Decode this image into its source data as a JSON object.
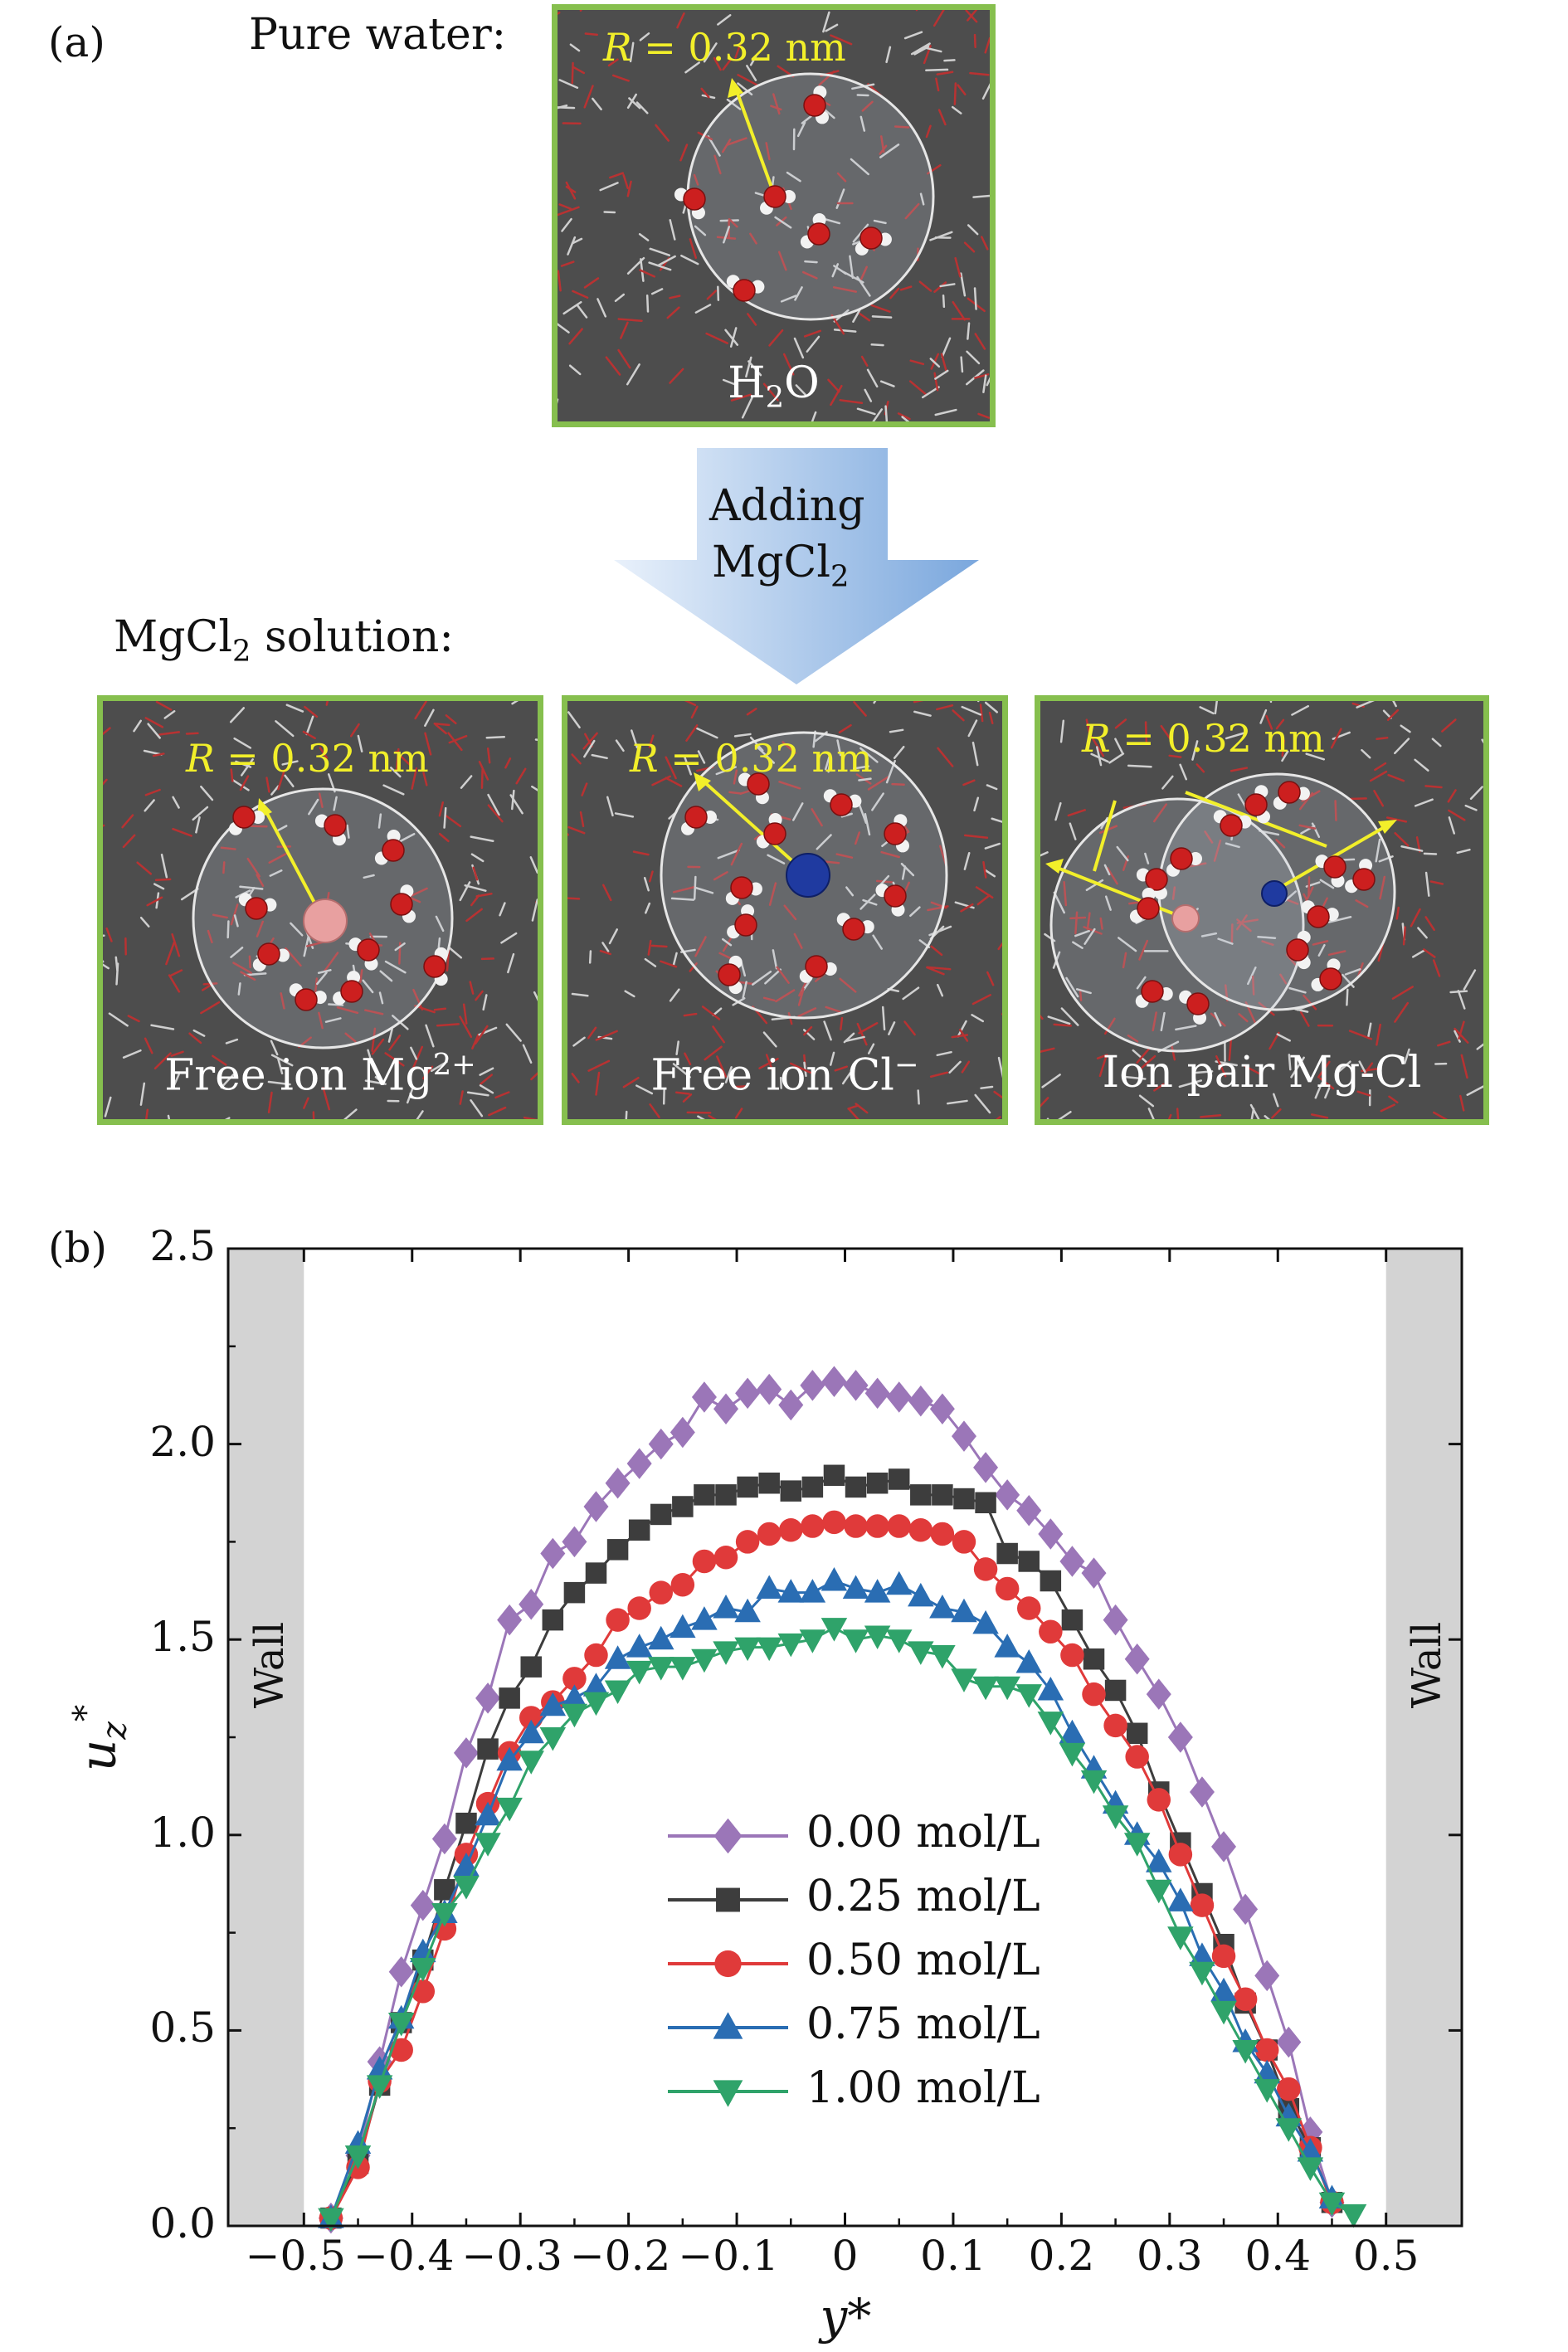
{
  "panel_a": {
    "label": "(a)",
    "pure_water_label": "Pure water:",
    "solution_label_pre": "MgCl",
    "solution_label_sub": "2",
    "solution_label_post": " solution:",
    "arrow_text_line1": "Adding",
    "arrow_text_line2_pre": "MgCl",
    "arrow_text_line2_sub": "2",
    "radius_var": "R",
    "radius_eq": " = 0.32 nm",
    "images": [
      {
        "caption_pre": "H",
        "caption_sub": "2",
        "caption_post": "O",
        "caption_sup": ""
      },
      {
        "caption_pre": "Free ion Mg",
        "caption_sub": "",
        "caption_post": "",
        "caption_sup": "2+"
      },
      {
        "caption_pre": "Free ion Cl",
        "caption_sub": "",
        "caption_post": "",
        "caption_sup": "−"
      },
      {
        "caption_pre": "Ion pair Mg-Cl",
        "caption_sub": "",
        "caption_post": "",
        "caption_sup": ""
      }
    ],
    "colors": {
      "frame": "#86bf4e",
      "background": "#4d4d4d",
      "oxygen": "#cc1f1f",
      "hydrogen": "#f2f2f2",
      "mg_ion": "#e8a0a0",
      "cl_ion": "#1f3aa0",
      "radius": "#f2ef2a"
    }
  },
  "panel_b": {
    "label": "(b)",
    "wall_label": "Wall",
    "chart_data": {
      "type": "line",
      "xlabel": "y*",
      "ylabel": "u",
      "ylabel_sub": "z",
      "ylabel_sup": "*",
      "xlim": [
        -0.57,
        0.57
      ],
      "ylim": [
        0,
        2.5
      ],
      "xticks": [
        -0.5,
        -0.4,
        -0.3,
        -0.2,
        -0.1,
        0,
        0.1,
        0.2,
        0.3,
        0.4,
        0.5
      ],
      "xtick_labels": [
        "−0.5",
        "−0.4",
        "−0.3",
        "−0.2",
        "−0.1",
        "0",
        "0.1",
        "0.2",
        "0.3",
        "0.4",
        "0.5"
      ],
      "yticks": [
        0,
        0.5,
        1.0,
        1.5,
        2.0,
        2.5
      ],
      "ytick_labels": [
        "0.0",
        "0.5",
        "1.0",
        "1.5",
        "2.0",
        "2.5"
      ],
      "wall_regions": [
        [
          -0.57,
          -0.5
        ],
        [
          0.5,
          0.57
        ]
      ],
      "grid": false,
      "legend_position": "center",
      "series": [
        {
          "name": "0.00 mol/L",
          "color": "#9b76b8",
          "marker": "diamond",
          "x": [
            -0.475,
            -0.45,
            -0.43,
            -0.41,
            -0.39,
            -0.37,
            -0.35,
            -0.33,
            -0.31,
            -0.29,
            -0.27,
            -0.25,
            -0.23,
            -0.21,
            -0.19,
            -0.17,
            -0.15,
            -0.13,
            -0.11,
            -0.09,
            -0.07,
            -0.05,
            -0.03,
            -0.01,
            0.01,
            0.03,
            0.05,
            0.07,
            0.09,
            0.11,
            0.13,
            0.15,
            0.17,
            0.19,
            0.21,
            0.23,
            0.25,
            0.27,
            0.29,
            0.31,
            0.33,
            0.35,
            0.37,
            0.39,
            0.41,
            0.43,
            0.45
          ],
          "y": [
            0.02,
            0.18,
            0.42,
            0.65,
            0.82,
            0.99,
            1.21,
            1.35,
            1.55,
            1.59,
            1.72,
            1.75,
            1.84,
            1.9,
            1.95,
            2.0,
            2.03,
            2.12,
            2.09,
            2.13,
            2.14,
            2.1,
            2.15,
            2.16,
            2.15,
            2.13,
            2.12,
            2.11,
            2.09,
            2.02,
            1.94,
            1.87,
            1.83,
            1.77,
            1.7,
            1.67,
            1.55,
            1.45,
            1.36,
            1.25,
            1.11,
            0.97,
            0.81,
            0.64,
            0.47,
            0.24,
            0.06
          ]
        },
        {
          "name": "0.25 mol/L",
          "color": "#3d3d3d",
          "marker": "square",
          "x": [
            -0.475,
            -0.45,
            -0.43,
            -0.41,
            -0.39,
            -0.37,
            -0.35,
            -0.33,
            -0.31,
            -0.29,
            -0.27,
            -0.25,
            -0.23,
            -0.21,
            -0.19,
            -0.17,
            -0.15,
            -0.13,
            -0.11,
            -0.09,
            -0.07,
            -0.05,
            -0.03,
            -0.01,
            0.01,
            0.03,
            0.05,
            0.07,
            0.09,
            0.11,
            0.13,
            0.15,
            0.17,
            0.19,
            0.21,
            0.23,
            0.25,
            0.27,
            0.29,
            0.31,
            0.33,
            0.35,
            0.37,
            0.39,
            0.41,
            0.43,
            0.45
          ],
          "y": [
            0.02,
            0.16,
            0.36,
            0.52,
            0.68,
            0.86,
            1.03,
            1.22,
            1.35,
            1.43,
            1.55,
            1.62,
            1.67,
            1.73,
            1.78,
            1.82,
            1.84,
            1.87,
            1.87,
            1.89,
            1.9,
            1.88,
            1.89,
            1.92,
            1.89,
            1.9,
            1.91,
            1.87,
            1.87,
            1.86,
            1.85,
            1.72,
            1.7,
            1.65,
            1.55,
            1.45,
            1.37,
            1.26,
            1.11,
            0.98,
            0.85,
            0.72,
            0.57,
            0.45,
            0.3,
            0.2,
            0.06
          ]
        },
        {
          "name": "0.50 mol/L",
          "color": "#e03a3a",
          "marker": "circle",
          "x": [
            -0.475,
            -0.45,
            -0.43,
            -0.41,
            -0.39,
            -0.37,
            -0.35,
            -0.33,
            -0.31,
            -0.29,
            -0.27,
            -0.25,
            -0.23,
            -0.21,
            -0.19,
            -0.17,
            -0.15,
            -0.13,
            -0.11,
            -0.09,
            -0.07,
            -0.05,
            -0.03,
            -0.01,
            0.01,
            0.03,
            0.05,
            0.07,
            0.09,
            0.11,
            0.13,
            0.15,
            0.17,
            0.19,
            0.21,
            0.23,
            0.25,
            0.27,
            0.29,
            0.31,
            0.33,
            0.35,
            0.37,
            0.39,
            0.41,
            0.43,
            0.45
          ],
          "y": [
            0.02,
            0.15,
            0.37,
            0.45,
            0.6,
            0.76,
            0.95,
            1.08,
            1.21,
            1.3,
            1.34,
            1.4,
            1.46,
            1.55,
            1.58,
            1.62,
            1.64,
            1.7,
            1.71,
            1.75,
            1.77,
            1.78,
            1.79,
            1.8,
            1.79,
            1.79,
            1.79,
            1.78,
            1.77,
            1.75,
            1.68,
            1.63,
            1.58,
            1.52,
            1.46,
            1.36,
            1.28,
            1.2,
            1.09,
            0.95,
            0.82,
            0.69,
            0.58,
            0.45,
            0.35,
            0.2,
            0.06
          ]
        },
        {
          "name": "0.75 mol/L",
          "color": "#2a6db3",
          "marker": "triangle-up",
          "x": [
            -0.475,
            -0.45,
            -0.43,
            -0.41,
            -0.39,
            -0.37,
            -0.35,
            -0.33,
            -0.31,
            -0.29,
            -0.27,
            -0.25,
            -0.23,
            -0.21,
            -0.19,
            -0.17,
            -0.15,
            -0.13,
            -0.11,
            -0.09,
            -0.07,
            -0.05,
            -0.03,
            -0.01,
            0.01,
            0.03,
            0.05,
            0.07,
            0.09,
            0.11,
            0.13,
            0.15,
            0.17,
            0.19,
            0.21,
            0.23,
            0.25,
            0.27,
            0.29,
            0.31,
            0.33,
            0.35,
            0.37,
            0.39,
            0.41,
            0.43,
            0.45
          ],
          "y": [
            0.02,
            0.21,
            0.4,
            0.53,
            0.7,
            0.8,
            0.92,
            1.05,
            1.19,
            1.26,
            1.33,
            1.35,
            1.38,
            1.45,
            1.48,
            1.5,
            1.53,
            1.55,
            1.58,
            1.57,
            1.63,
            1.62,
            1.62,
            1.65,
            1.63,
            1.62,
            1.64,
            1.61,
            1.58,
            1.57,
            1.54,
            1.48,
            1.44,
            1.37,
            1.26,
            1.17,
            1.08,
            1.0,
            0.93,
            0.83,
            0.69,
            0.6,
            0.47,
            0.39,
            0.28,
            0.19,
            0.07
          ]
        },
        {
          "name": "1.00 mol/L",
          "color": "#2fa36a",
          "marker": "triangle-down",
          "x": [
            -0.475,
            -0.45,
            -0.43,
            -0.41,
            -0.39,
            -0.37,
            -0.35,
            -0.33,
            -0.31,
            -0.29,
            -0.27,
            -0.25,
            -0.23,
            -0.21,
            -0.19,
            -0.17,
            -0.15,
            -0.13,
            -0.11,
            -0.09,
            -0.07,
            -0.05,
            -0.03,
            -0.01,
            0.01,
            0.03,
            0.05,
            0.07,
            0.09,
            0.11,
            0.13,
            0.15,
            0.17,
            0.19,
            0.21,
            0.23,
            0.25,
            0.27,
            0.29,
            0.31,
            0.33,
            0.35,
            0.37,
            0.39,
            0.41,
            0.43,
            0.45,
            0.47
          ],
          "y": [
            0.02,
            0.18,
            0.36,
            0.52,
            0.66,
            0.8,
            0.87,
            0.98,
            1.07,
            1.19,
            1.25,
            1.31,
            1.34,
            1.37,
            1.42,
            1.43,
            1.43,
            1.45,
            1.47,
            1.48,
            1.48,
            1.49,
            1.5,
            1.53,
            1.5,
            1.51,
            1.5,
            1.47,
            1.46,
            1.4,
            1.38,
            1.38,
            1.36,
            1.29,
            1.21,
            1.14,
            1.05,
            0.98,
            0.86,
            0.74,
            0.65,
            0.55,
            0.45,
            0.35,
            0.25,
            0.15,
            0.06,
            0.03
          ]
        }
      ]
    }
  }
}
